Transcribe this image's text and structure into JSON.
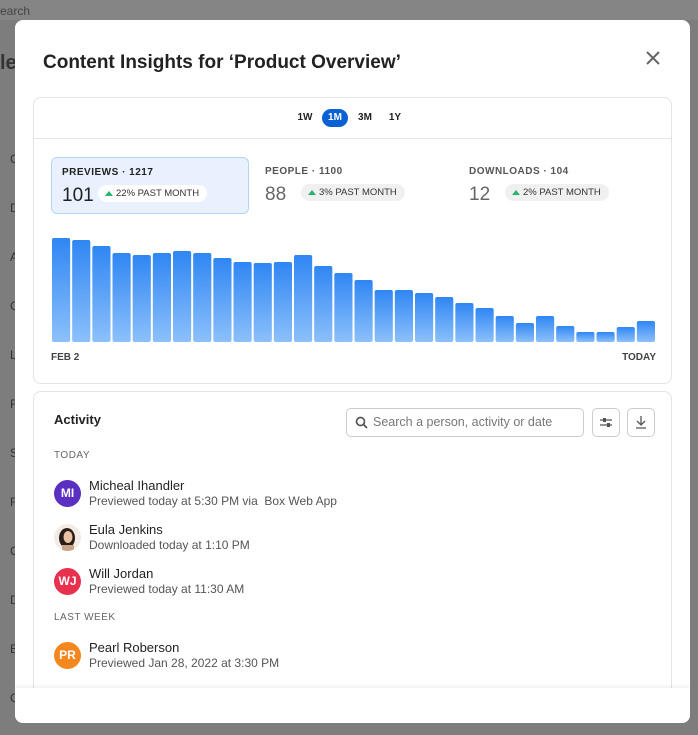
{
  "background": {
    "search": "earch",
    "heading": "le",
    "row_letters": [
      "C",
      "D",
      "A",
      "C",
      "L",
      "F",
      "S",
      "F",
      "C",
      "D",
      "E",
      "C"
    ]
  },
  "modal": {
    "title": "Content Insights for ‘Product Overview’"
  },
  "ranges": [
    "1W",
    "1M",
    "3M",
    "1Y"
  ],
  "metrics": [
    {
      "label": "PREVIEWS · 1217",
      "value": 101,
      "change": "22% PAST MONTH"
    },
    {
      "label": "PEOPLE · 1100",
      "value": 88,
      "change": "3% PAST MONTH"
    },
    {
      "label": "DOWNLOADS · 104",
      "value": 12,
      "change": "2% PAST MONTH"
    }
  ],
  "chart_data": {
    "type": "bar",
    "color": "#3a8cf4",
    "categories": [
      "FEB 2",
      null,
      null,
      null,
      null,
      null,
      null,
      null,
      null,
      null,
      null,
      null,
      null,
      null,
      null,
      null,
      null,
      null,
      null,
      null,
      null,
      null,
      null,
      null,
      null,
      null,
      null,
      null,
      null,
      "TODAY"
    ],
    "values": [
      104,
      102,
      96,
      89,
      87,
      89,
      91,
      89,
      84,
      80,
      79,
      80,
      87,
      76,
      69,
      62,
      52,
      52,
      49,
      45,
      39,
      34,
      26,
      19,
      26,
      16,
      10,
      10,
      15,
      21
    ]
  },
  "activity": {
    "title": "Activity",
    "search_placeholder": "Search a person, activity or date",
    "groups": [
      {
        "label": "TODAY",
        "items": [
          {
            "initials": "MI",
            "name": "Micheal Ihandler",
            "detail": "Previewed today at 5:30 PM via  Box Web App"
          },
          {
            "name": "Eula Jenkins",
            "detail": "Downloaded today at 1:10 PM"
          },
          {
            "initials": "WJ",
            "name": "Will Jordan",
            "detail": "Previewed today at 11:30 AM"
          }
        ]
      },
      {
        "label": "LAST WEEK",
        "items": [
          {
            "initials": "PR",
            "name": "Pearl Roberson",
            "detail": "Previewed Jan 28, 2022 at 3:30 PM"
          }
        ]
      }
    ]
  }
}
